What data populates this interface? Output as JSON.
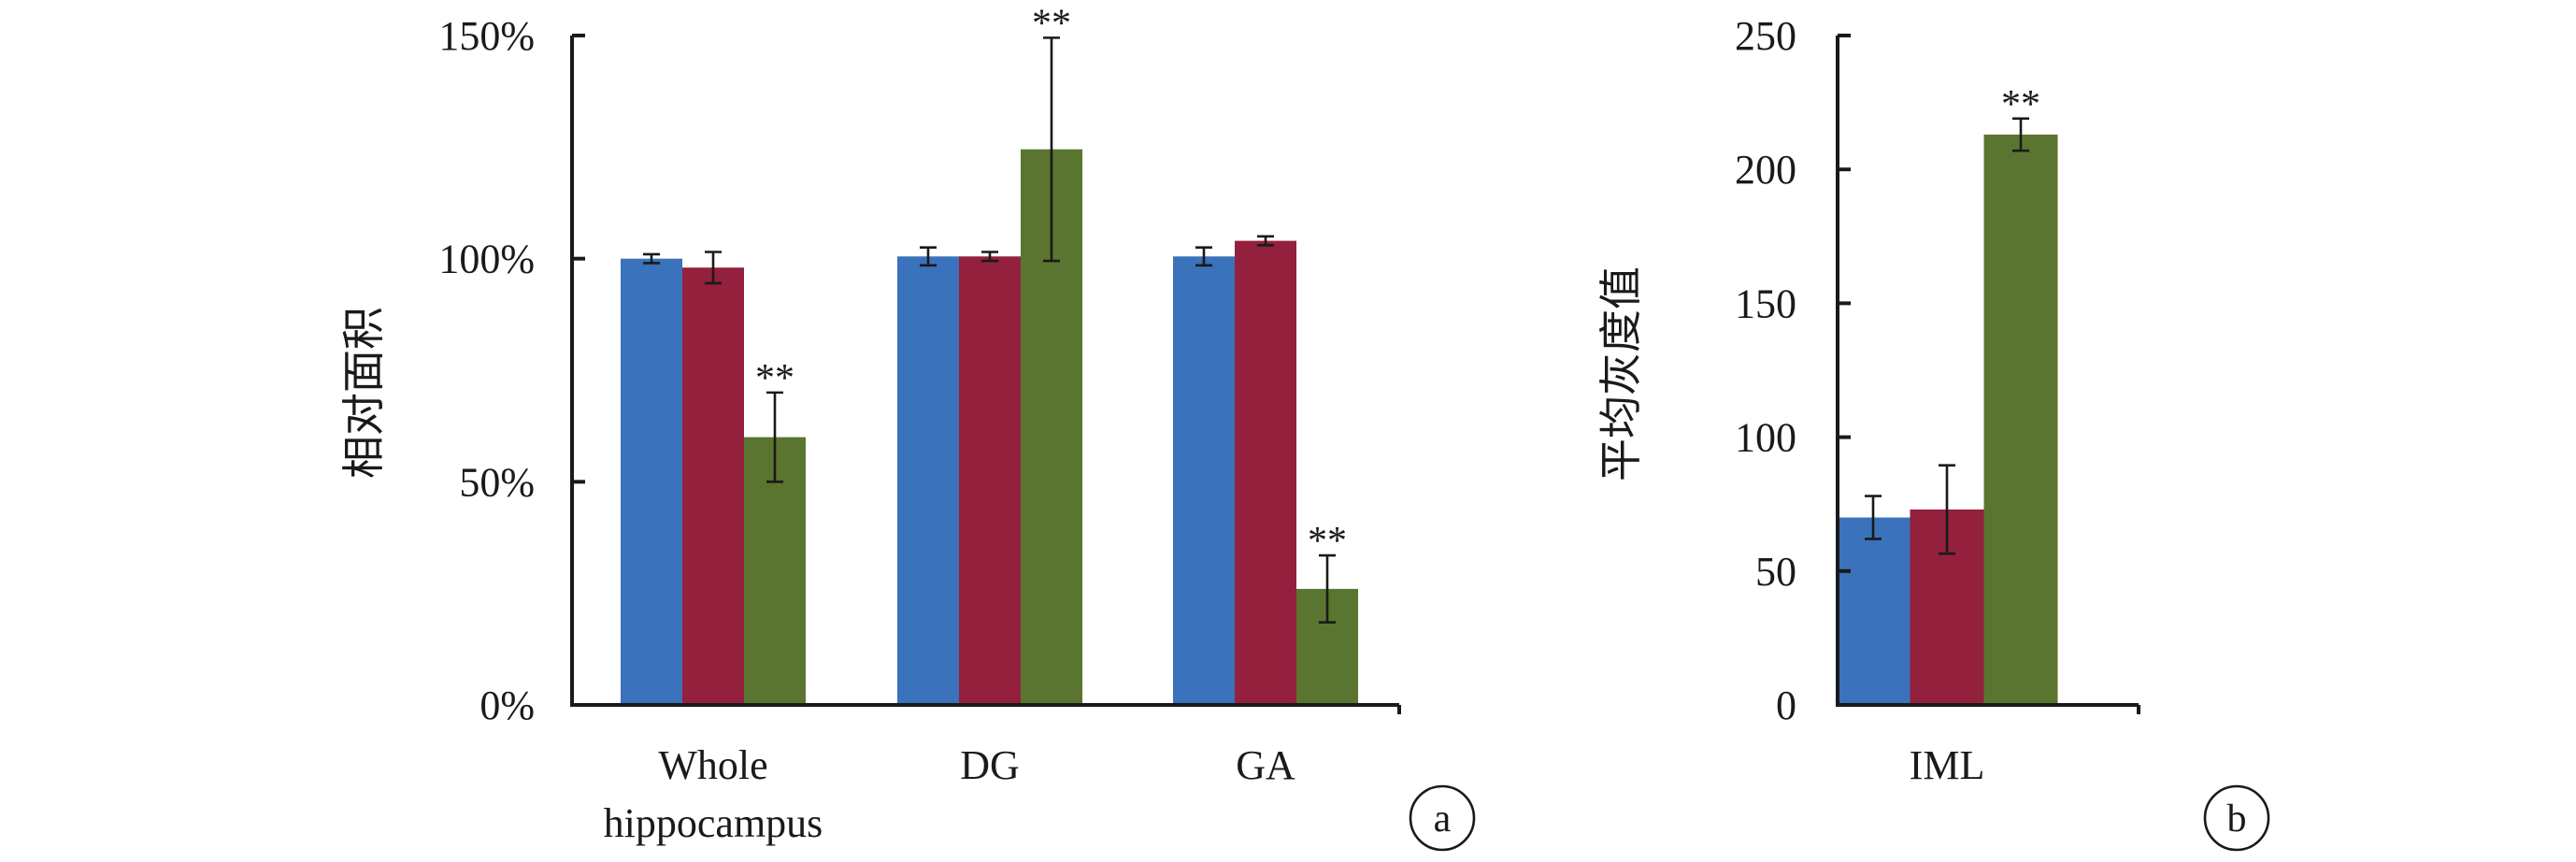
{
  "colors": {
    "series1": "#3a72bb",
    "series2": "#93203d",
    "series3": "#5a7530",
    "axis": "#1a1a1a"
  },
  "chart_data": [
    {
      "type": "bar",
      "panel": "a",
      "ylabel": "相对面积",
      "ylim": [
        0,
        150
      ],
      "yticks": [
        0,
        50,
        100,
        150
      ],
      "ytick_labels": [
        "0%",
        "50%",
        "100%",
        "150%"
      ],
      "categories": [
        "Whole hippocampus",
        "DG",
        "GA"
      ],
      "category_lines": [
        [
          "Whole",
          "hippocampus"
        ],
        [
          "DG"
        ],
        [
          "GA"
        ]
      ],
      "series": [
        {
          "values": [
            100,
            100.5,
            100.5
          ],
          "errors": [
            1,
            2,
            2
          ]
        },
        {
          "values": [
            98,
            100.5,
            104
          ],
          "errors": [
            3.5,
            1,
            1
          ]
        },
        {
          "values": [
            60,
            124.5,
            26
          ],
          "errors": [
            10,
            25,
            7.5
          ]
        }
      ],
      "annotations": [
        {
          "category": 0,
          "series": 2,
          "text": "**"
        },
        {
          "category": 1,
          "series": 2,
          "text": "**"
        },
        {
          "category": 2,
          "series": 2,
          "text": "**"
        }
      ],
      "grid": false,
      "legend": "none"
    },
    {
      "type": "bar",
      "panel": "b",
      "ylabel": "平均灰度值",
      "ylim": [
        0,
        250
      ],
      "yticks": [
        0,
        50,
        100,
        150,
        200,
        250
      ],
      "ytick_labels": [
        "0",
        "50",
        "100",
        "150",
        "200",
        "250"
      ],
      "categories": [
        "IML"
      ],
      "category_lines": [
        [
          "IML"
        ]
      ],
      "series": [
        {
          "values": [
            70
          ],
          "errors": [
            8
          ]
        },
        {
          "values": [
            73
          ],
          "errors": [
            16.5
          ]
        },
        {
          "values": [
            213
          ],
          "errors": [
            6
          ]
        }
      ],
      "annotations": [
        {
          "category": 0,
          "series": 2,
          "text": "**"
        }
      ],
      "grid": false,
      "legend": "none"
    }
  ]
}
